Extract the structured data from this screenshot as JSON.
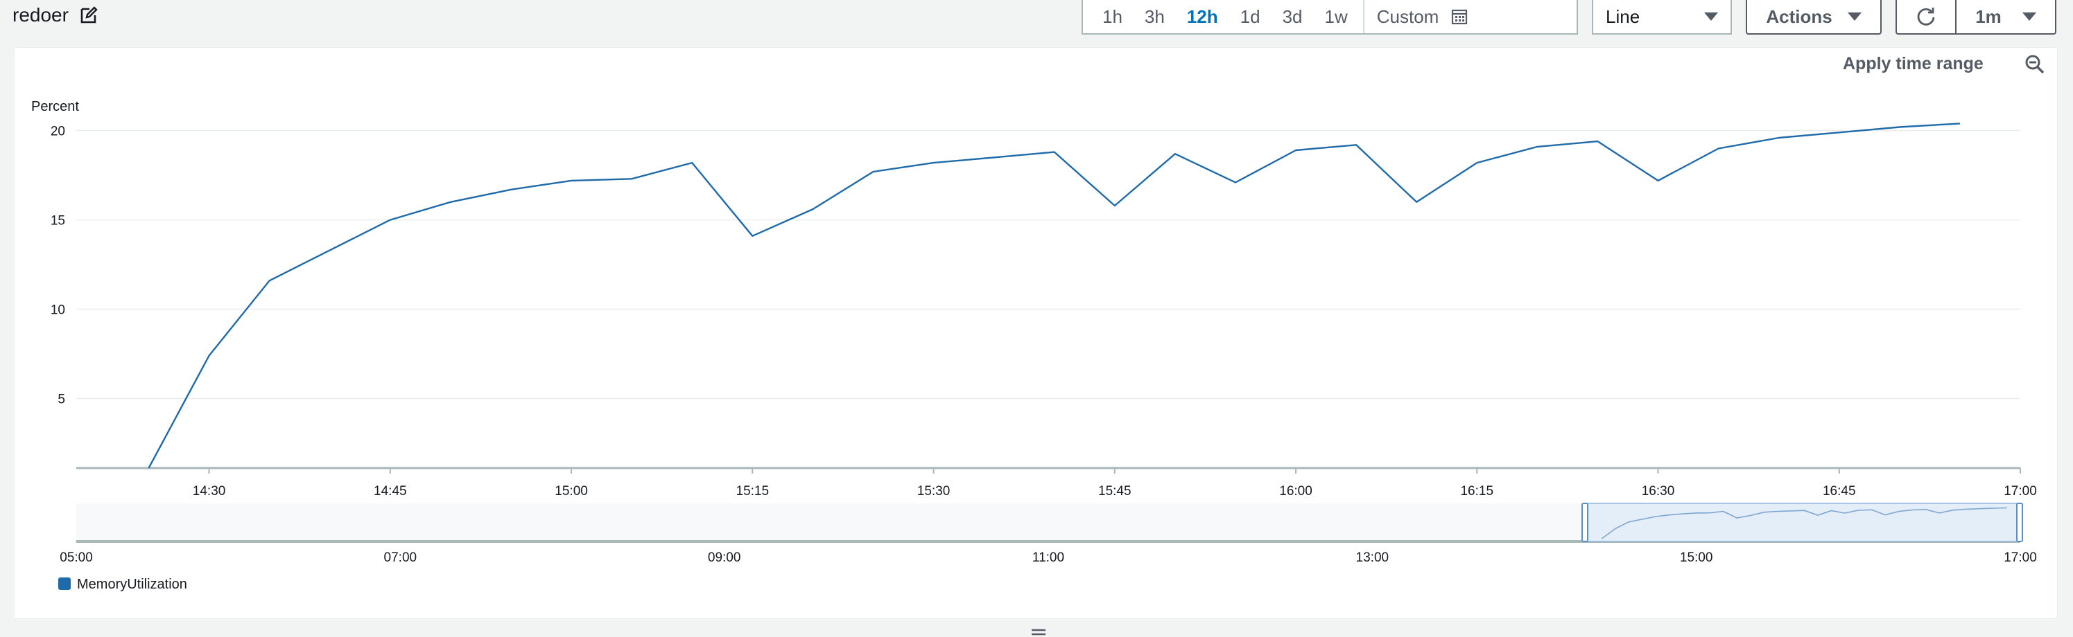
{
  "widget": {
    "title": "redoer"
  },
  "toolbar": {
    "time_ranges": [
      "1h",
      "3h",
      "12h",
      "1d",
      "3d",
      "1w"
    ],
    "active_range": "12h",
    "custom_label": "Custom",
    "view_type": "Line",
    "actions_label": "Actions",
    "refresh_interval": "1m"
  },
  "panel": {
    "apply_time_range": "Apply time range"
  },
  "chart_data": {
    "type": "line",
    "ylabel": "Percent",
    "ylim": [
      1.1,
      21.5
    ],
    "yticks": [
      5,
      10,
      15,
      20
    ],
    "xlim": [
      "14:19",
      "17:00"
    ],
    "xticks": [
      "14:30",
      "14:45",
      "15:00",
      "15:15",
      "15:30",
      "15:45",
      "16:00",
      "16:15",
      "16:30",
      "16:45",
      "17:00"
    ],
    "grid": true,
    "series": [
      {
        "name": "MemoryUtilization",
        "color": "#1f6aa9",
        "x": [
          "14:25",
          "14:30",
          "14:35",
          "14:40",
          "14:45",
          "14:50",
          "14:55",
          "15:00",
          "15:05",
          "15:10",
          "15:15",
          "15:20",
          "15:25",
          "15:30",
          "15:35",
          "15:40",
          "15:45",
          "15:50",
          "15:55",
          "16:00",
          "16:05",
          "16:10",
          "16:15",
          "16:20",
          "16:25",
          "16:30",
          "16:35",
          "16:40",
          "16:45",
          "16:50",
          "16:55"
        ],
        "values": [
          1.1,
          7.4,
          11.6,
          13.3,
          15.0,
          16.0,
          16.7,
          17.2,
          17.3,
          18.2,
          14.1,
          15.6,
          17.7,
          18.2,
          18.5,
          18.8,
          15.8,
          18.7,
          17.1,
          18.9,
          19.2,
          16.0,
          18.2,
          19.1,
          19.4,
          17.2,
          19.0,
          19.6,
          19.9,
          20.2,
          20.4
        ]
      }
    ],
    "overview": {
      "xlim": [
        "05:00",
        "17:00"
      ],
      "xticks": [
        "05:00",
        "07:00",
        "09:00",
        "11:00",
        "13:00",
        "15:00",
        "17:00"
      ],
      "selection": [
        "14:19",
        "17:00"
      ]
    }
  }
}
